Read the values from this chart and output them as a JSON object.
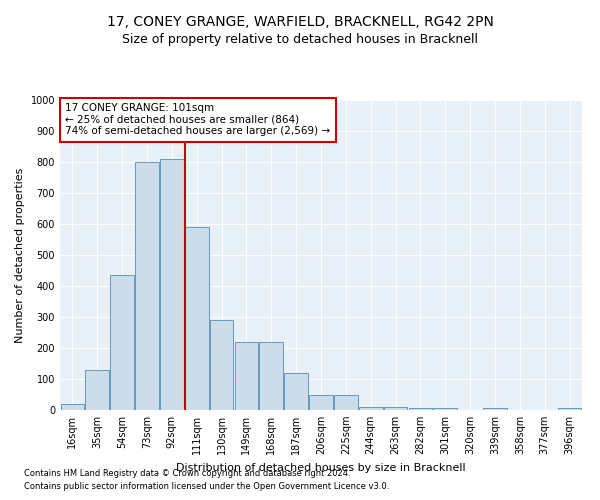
{
  "title1": "17, CONEY GRANGE, WARFIELD, BRACKNELL, RG42 2PN",
  "title2": "Size of property relative to detached houses in Bracknell",
  "xlabel": "Distribution of detached houses by size in Bracknell",
  "ylabel": "Number of detached properties",
  "categories": [
    "16sqm",
    "35sqm",
    "54sqm",
    "73sqm",
    "92sqm",
    "111sqm",
    "130sqm",
    "149sqm",
    "168sqm",
    "187sqm",
    "206sqm",
    "225sqm",
    "244sqm",
    "263sqm",
    "282sqm",
    "301sqm",
    "320sqm",
    "339sqm",
    "358sqm",
    "377sqm",
    "396sqm"
  ],
  "values": [
    20,
    130,
    435,
    800,
    810,
    590,
    290,
    220,
    220,
    120,
    50,
    50,
    10,
    10,
    5,
    5,
    0,
    5,
    0,
    0,
    5
  ],
  "bar_color": "#ccdce8",
  "bar_edge_color": "#6699bb",
  "vline_x": 4.52,
  "vline_color": "#cc0000",
  "annotation_text": "17 CONEY GRANGE: 101sqm\n← 25% of detached houses are smaller (864)\n74% of semi-detached houses are larger (2,569) →",
  "annotation_box_color": "#cc0000",
  "ylim": [
    0,
    1000
  ],
  "yticks": [
    0,
    100,
    200,
    300,
    400,
    500,
    600,
    700,
    800,
    900,
    1000
  ],
  "background_color": "#e8f0f8",
  "grid_color": "#ffffff",
  "footer1": "Contains HM Land Registry data © Crown copyright and database right 2024.",
  "footer2": "Contains public sector information licensed under the Open Government Licence v3.0.",
  "title1_fontsize": 10,
  "title2_fontsize": 9,
  "tick_fontsize": 7,
  "ylabel_fontsize": 8,
  "xlabel_fontsize": 8,
  "annotation_fontsize": 7.5,
  "footer_fontsize": 6
}
